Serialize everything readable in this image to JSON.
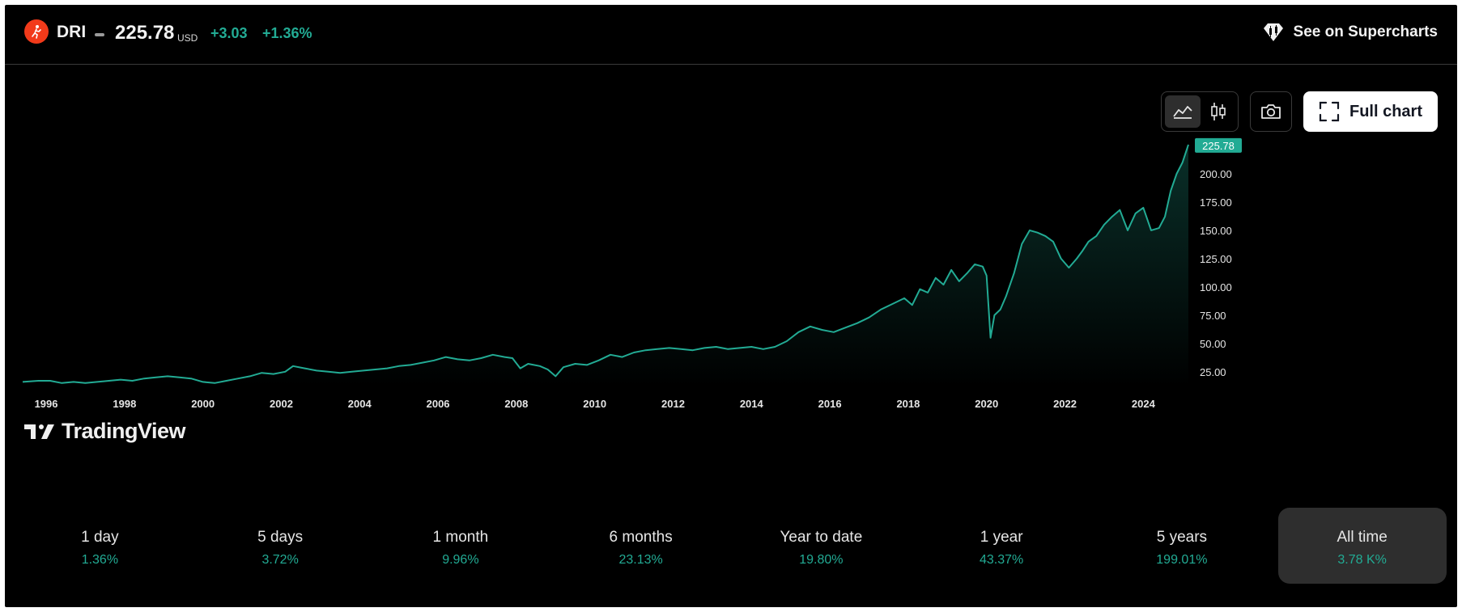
{
  "header": {
    "symbol": "DRI",
    "price": "225.78",
    "currency": "USD",
    "change": "+3.03",
    "change_pct": "+1.36%",
    "supercharts_label": "See on Supercharts"
  },
  "toolbar": {
    "full_chart_label": "Full chart"
  },
  "watermark": "TradingView",
  "colors": {
    "line": "#22ab94",
    "price_tag": "#22ab94",
    "background": "#000000",
    "logo": "#f23a1a"
  },
  "icons": [
    "runner-logo-icon",
    "supercharts-icon",
    "area-chart-icon",
    "candlestick-icon",
    "camera-icon",
    "fullscreen-icon"
  ],
  "periods": [
    {
      "label": "1 day",
      "value": "1.36%"
    },
    {
      "label": "5 days",
      "value": "3.72%"
    },
    {
      "label": "1 month",
      "value": "9.96%"
    },
    {
      "label": "6 months",
      "value": "23.13%"
    },
    {
      "label": "Year to date",
      "value": "19.80%"
    },
    {
      "label": "1 year",
      "value": "43.37%"
    },
    {
      "label": "5 years",
      "value": "199.01%"
    },
    {
      "label": "All time",
      "value": "3.78 K%",
      "active": true
    }
  ],
  "chart_data": {
    "type": "area",
    "title": "",
    "xlabel": "",
    "ylabel": "",
    "x_ticks": [
      "1996",
      "1998",
      "2000",
      "2002",
      "2004",
      "2006",
      "2008",
      "2010",
      "2012",
      "2014",
      "2016",
      "2018",
      "2020",
      "2022",
      "2024"
    ],
    "y_ticks": [
      "25.00",
      "50.00",
      "75.00",
      "100.00",
      "125.00",
      "150.00",
      "175.00",
      "200.00"
    ],
    "xlim": [
      1995.4,
      2025.15
    ],
    "ylim": [
      12,
      230
    ],
    "grid": false,
    "last_value_label": "225.78",
    "series": [
      {
        "x": [
          1995.4,
          1995.8,
          1996.1,
          1996.4,
          1996.7,
          1997.0,
          1997.3,
          1997.6,
          1997.9,
          1998.2,
          1998.5,
          1998.8,
          1999.1,
          1999.4,
          1999.7,
          2000.0,
          2000.3,
          2000.6,
          2000.9,
          2001.2,
          2001.5,
          2001.8,
          2002.1,
          2002.3,
          2002.6,
          2002.9,
          2003.2,
          2003.5,
          2003.8,
          2004.1,
          2004.4,
          2004.7,
          2005.0,
          2005.3,
          2005.6,
          2005.9,
          2006.2,
          2006.5,
          2006.8,
          2007.1,
          2007.4,
          2007.7,
          2007.9,
          2008.1,
          2008.3,
          2008.6,
          2008.8,
          2009.0,
          2009.2,
          2009.5,
          2009.8,
          2010.1,
          2010.4,
          2010.7,
          2011.0,
          2011.3,
          2011.6,
          2011.9,
          2012.2,
          2012.5,
          2012.8,
          2013.1,
          2013.4,
          2013.7,
          2014.0,
          2014.3,
          2014.6,
          2014.9,
          2015.2,
          2015.5,
          2015.8,
          2016.1,
          2016.4,
          2016.7,
          2017.0,
          2017.3,
          2017.6,
          2017.9,
          2018.1,
          2018.3,
          2018.5,
          2018.7,
          2018.9,
          2019.1,
          2019.3,
          2019.5,
          2019.7,
          2019.9,
          2020.0,
          2020.1,
          2020.2,
          2020.35,
          2020.5,
          2020.7,
          2020.9,
          2021.1,
          2021.3,
          2021.5,
          2021.7,
          2021.9,
          2022.1,
          2022.3,
          2022.45,
          2022.6,
          2022.8,
          2023.0,
          2023.2,
          2023.4,
          2023.6,
          2023.8,
          2024.0,
          2024.2,
          2024.4,
          2024.55,
          2024.7,
          2024.85,
          2025.0,
          2025.15
        ],
        "values": [
          16,
          17,
          17,
          15,
          16,
          15,
          16,
          17,
          18,
          17,
          19,
          20,
          21,
          20,
          19,
          16,
          15,
          17,
          19,
          21,
          24,
          23,
          25,
          30,
          28,
          26,
          25,
          24,
          25,
          26,
          27,
          28,
          30,
          31,
          33,
          35,
          38,
          36,
          35,
          37,
          40,
          38,
          37,
          28,
          32,
          30,
          27,
          21,
          29,
          32,
          31,
          35,
          40,
          38,
          42,
          44,
          45,
          46,
          45,
          44,
          46,
          47,
          45,
          46,
          47,
          45,
          47,
          52,
          60,
          65,
          62,
          60,
          64,
          68,
          73,
          80,
          85,
          90,
          84,
          98,
          95,
          108,
          102,
          115,
          105,
          112,
          120,
          118,
          110,
          55,
          75,
          80,
          92,
          112,
          138,
          150,
          148,
          145,
          140,
          125,
          117,
          125,
          132,
          140,
          145,
          155,
          162,
          168,
          150,
          165,
          170,
          150,
          152,
          162,
          185,
          200,
          210,
          225.78
        ]
      }
    ]
  }
}
